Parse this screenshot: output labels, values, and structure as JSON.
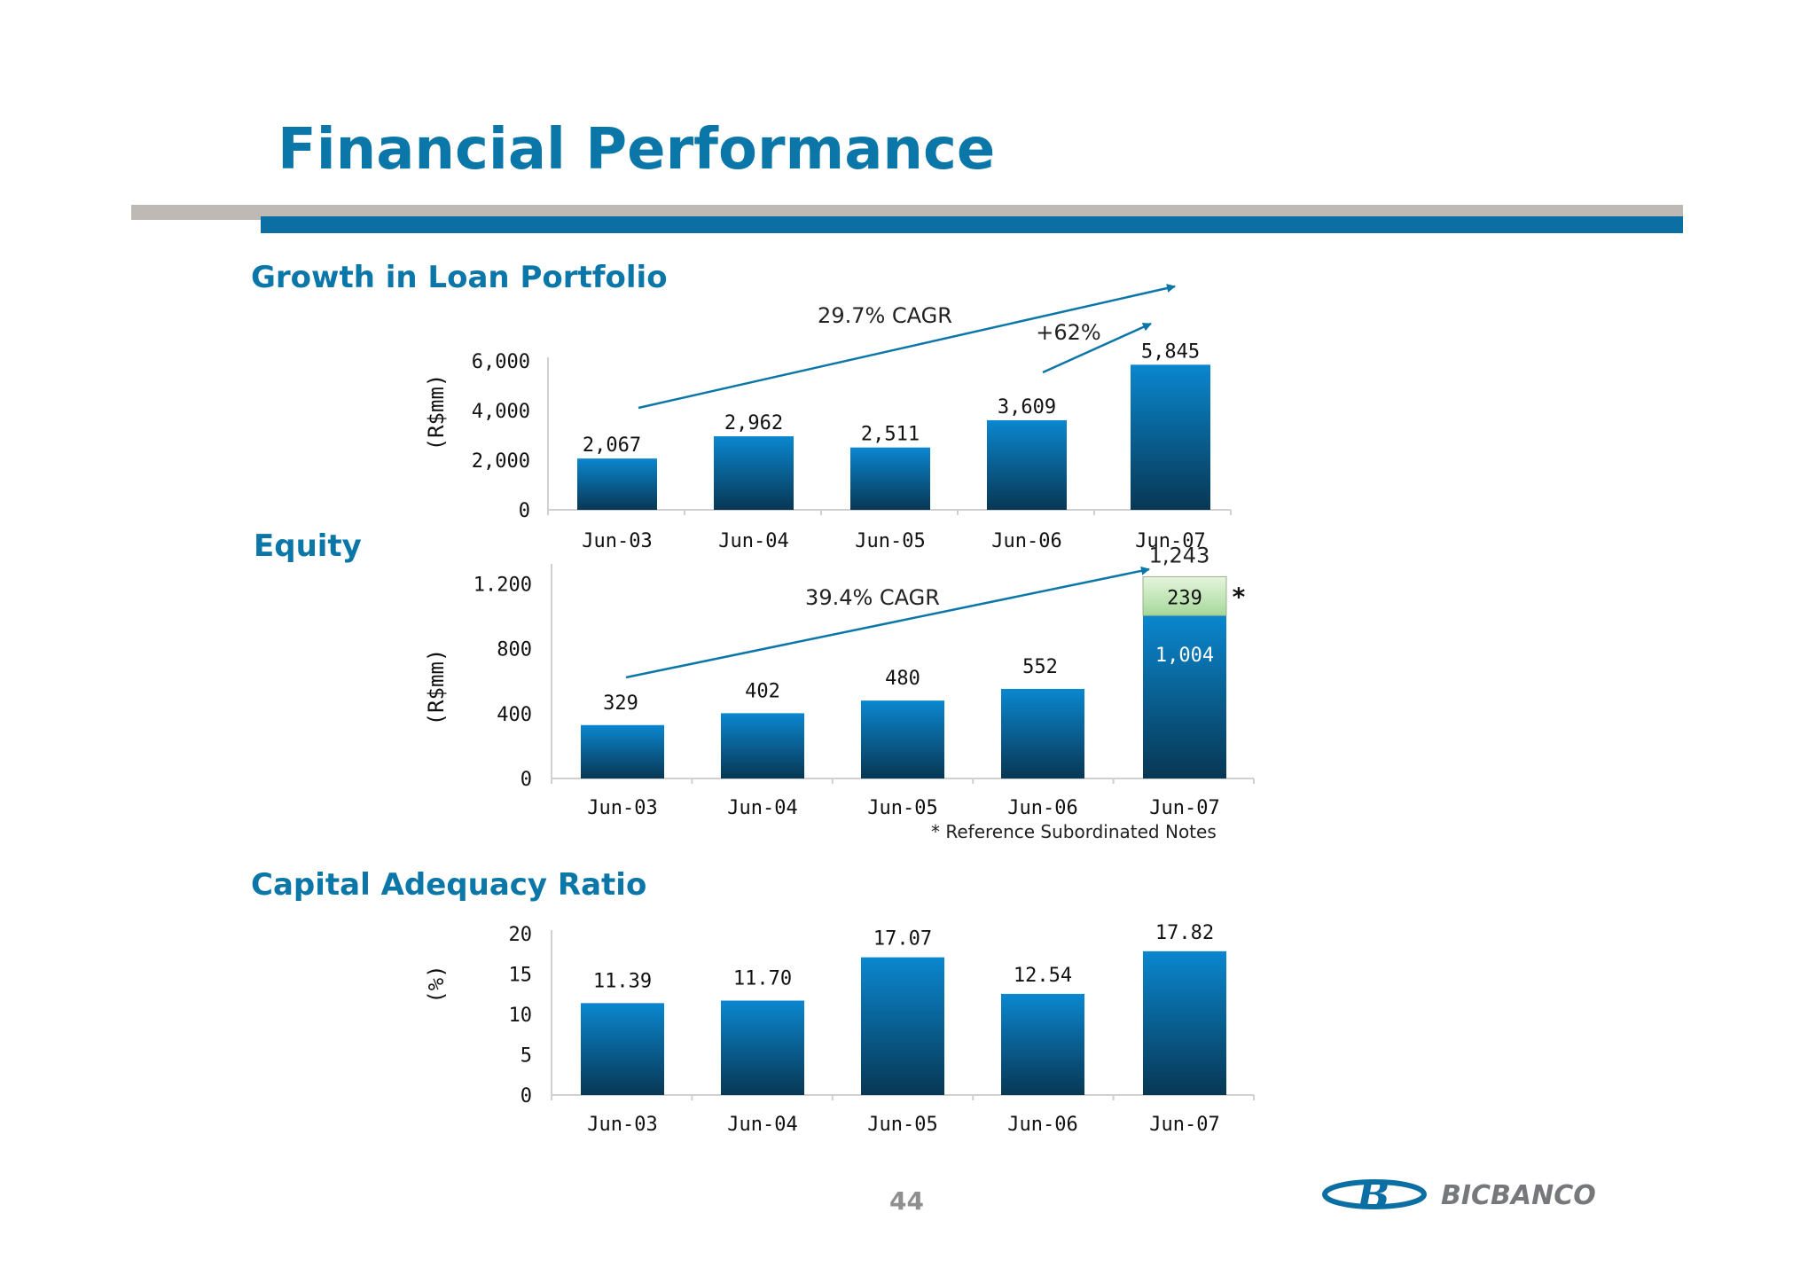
{
  "title": "Financial Performance",
  "page_number": "44",
  "logo_text": "BICBANCO",
  "colors": {
    "accent": "#0b76a8",
    "bar_top": "#0a87cf",
    "bar_bottom": "#083754",
    "sub_notes": "#a6d89a",
    "divider_gray": "#bfb9b6",
    "divider_blue": "#0b6fa3"
  },
  "chart_data": [
    {
      "id": "loan",
      "type": "bar",
      "title": "Growth in Loan Portfolio",
      "ylabel": "(R$mm)",
      "categories": [
        "Jun-03",
        "Jun-04",
        "Jun-05",
        "Jun-06",
        "Jun-07"
      ],
      "values": [
        2067,
        2962,
        2511,
        3609,
        5845
      ],
      "value_labels": [
        "2,067",
        "2,962",
        "2,511",
        "3,609",
        "5,845"
      ],
      "yticks": [
        0,
        2000,
        4000,
        6000
      ],
      "ytick_labels": [
        "0",
        "2,000",
        "4,000",
        "6,000"
      ],
      "ylim": [
        0,
        6000
      ],
      "annotations": [
        "29.7% CAGR",
        "+62%"
      ]
    },
    {
      "id": "equity",
      "type": "bar",
      "title": "Equity",
      "ylabel": "(R$mm)",
      "categories": [
        "Jun-03",
        "Jun-04",
        "Jun-05",
        "Jun-06",
        "Jun-07"
      ],
      "series": [
        {
          "name": "Equity",
          "values": [
            329,
            402,
            480,
            552,
            1004
          ],
          "value_labels": [
            "329",
            "402",
            "480",
            "552",
            "1,004"
          ]
        },
        {
          "name": "Reference Subordinated Notes",
          "values": [
            0,
            0,
            0,
            0,
            239
          ],
          "value_labels": [
            "",
            "",
            "",
            "",
            "239"
          ]
        }
      ],
      "total_label": "1,243",
      "yticks": [
        0,
        400,
        800,
        1200
      ],
      "ytick_labels": [
        "0",
        "400",
        "800",
        "1.200"
      ],
      "ylim": [
        0,
        1300
      ],
      "annotations": [
        "39.4% CAGR"
      ],
      "marker": "*",
      "footnote": "* Reference Subordinated Notes"
    },
    {
      "id": "car",
      "type": "bar",
      "title": "Capital Adequacy Ratio",
      "ylabel": "(%)",
      "categories": [
        "Jun-03",
        "Jun-04",
        "Jun-05",
        "Jun-06",
        "Jun-07"
      ],
      "values": [
        11.39,
        11.7,
        17.07,
        12.54,
        17.82
      ],
      "value_labels": [
        "11.39",
        "11.70",
        "17.07",
        "12.54",
        "17.82"
      ],
      "yticks": [
        0,
        5,
        10,
        15,
        20
      ],
      "ytick_labels": [
        "0",
        "5",
        "10",
        "15",
        "20"
      ],
      "ylim": [
        0,
        20
      ]
    }
  ]
}
